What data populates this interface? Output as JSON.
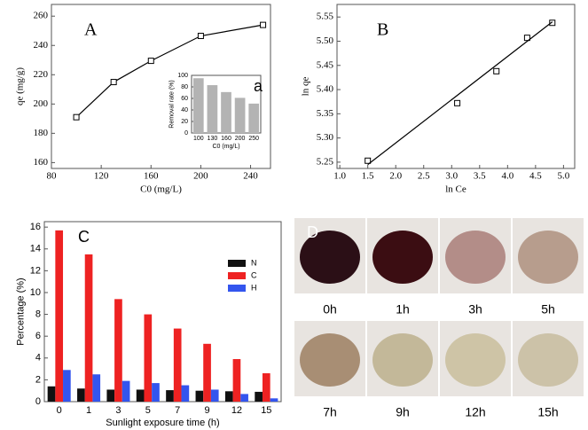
{
  "chart_data": [
    {
      "type": "line",
      "panel_label": "A",
      "xlabel": "C0 (mg/L)",
      "ylabel": "qe (mg/g)",
      "x": [
        100,
        130,
        160,
        200,
        250
      ],
      "series": [
        {
          "color": "#000000",
          "values": [
            191,
            215,
            229.5,
            246.5,
            254
          ]
        }
      ],
      "xlim": [
        80,
        256
      ],
      "xticks": [
        80,
        120,
        160,
        200,
        240
      ],
      "ylim": [
        156,
        268
      ],
      "yticks": [
        160,
        180,
        200,
        220,
        240,
        260
      ]
    },
    {
      "type": "bar",
      "panel_label": "a",
      "xlabel": "C0 (mg/L)",
      "ylabel": "Removal rate (%)",
      "categories": [
        "100",
        "130",
        "160",
        "200",
        "250"
      ],
      "values": [
        95,
        83,
        71,
        61,
        51
      ],
      "color": "#b3b3b3",
      "ylim": [
        0,
        100
      ],
      "yticks": [
        0,
        20,
        40,
        60,
        80,
        100
      ]
    },
    {
      "type": "scatter",
      "panel_label": "B",
      "xlabel": "ln Ce",
      "ylabel": "ln qe",
      "series": [
        {
          "mode": "markers",
          "color": "#000000",
          "x": [
            1.5,
            3.1,
            3.8,
            4.35,
            4.8
          ],
          "values": [
            5.253,
            5.372,
            5.438,
            5.507,
            5.538
          ]
        },
        {
          "mode": "line",
          "color": "#000000",
          "x": [
            1.5,
            4.8
          ],
          "values": [
            5.245,
            5.54
          ]
        }
      ],
      "xlim": [
        0.95,
        5.2
      ],
      "xticks": [
        {
          "value": 1,
          "label": "1.0"
        },
        1.5,
        {
          "value": 2,
          "label": "2.0"
        },
        2.5,
        {
          "value": 3,
          "label": "3.0"
        },
        3.5,
        {
          "value": 4,
          "label": "4.0"
        },
        4.5,
        {
          "value": 5,
          "label": "5.0"
        }
      ],
      "ylim": [
        5.237,
        5.576
      ],
      "yticks": [
        5.25,
        {
          "value": 5.3,
          "label": "5.30"
        },
        5.35,
        {
          "value": 5.4,
          "label": "5.40"
        },
        5.45,
        {
          "value": 5.5,
          "label": "5.50"
        },
        5.55
      ]
    },
    {
      "type": "bar",
      "panel_label": "C",
      "xlabel": "Sunlight exposure time (h)",
      "ylabel": "Percentage (%)",
      "categories": [
        "0",
        "1",
        "3",
        "5",
        "7",
        "9",
        "12",
        "15"
      ],
      "series": [
        {
          "name": "N",
          "color": "#111111",
          "values": [
            1.4,
            1.2,
            1.1,
            1.1,
            1.05,
            1.0,
            0.95,
            0.9
          ]
        },
        {
          "name": "C",
          "color": "#ee2222",
          "values": [
            15.7,
            13.5,
            9.4,
            8.0,
            6.7,
            5.3,
            3.9,
            2.6
          ]
        },
        {
          "name": "H",
          "color": "#3355ee",
          "values": [
            2.9,
            2.5,
            1.9,
            1.7,
            1.5,
            1.1,
            0.7,
            0.3
          ]
        }
      ],
      "ylim": [
        0,
        16.5
      ],
      "yticks": [
        0,
        2,
        4,
        6,
        8,
        10,
        12,
        14,
        16
      ],
      "legend": "upper right"
    }
  ],
  "panel_d": {
    "label": "D",
    "captions": [
      "0h",
      "1h",
      "3h",
      "5h",
      "7h",
      "9h",
      "12h",
      "15h"
    ]
  }
}
